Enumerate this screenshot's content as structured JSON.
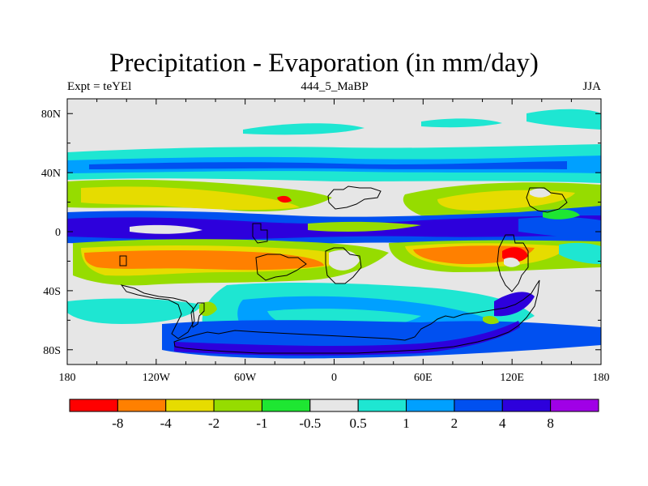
{
  "title": "Precipitation - Evaporation (in mm/day)",
  "left_string": "Expt = teYEl",
  "center_string": "444_5_MaBP",
  "right_string": "JJA",
  "lon_ticks": [
    "180",
    "120W",
    "60W",
    "0",
    "60E",
    "120E",
    "180"
  ],
  "lat_ticks": [
    "80N",
    "40N",
    "0",
    "40S",
    "80S"
  ],
  "colorbar": {
    "colors": [
      "#ff0000",
      "#ff8000",
      "#e6dc00",
      "#96dc00",
      "#1ee632",
      "#e6e6e6",
      "#1ee6d2",
      "#00a0ff",
      "#0050f0",
      "#2d00dc",
      "#a000e6"
    ],
    "labels": [
      "-8",
      "-4",
      "-2",
      "-1",
      "-0.5",
      "0.5",
      "1",
      "2",
      "4",
      "8"
    ]
  },
  "map_background_color": "#e6e6e6"
}
